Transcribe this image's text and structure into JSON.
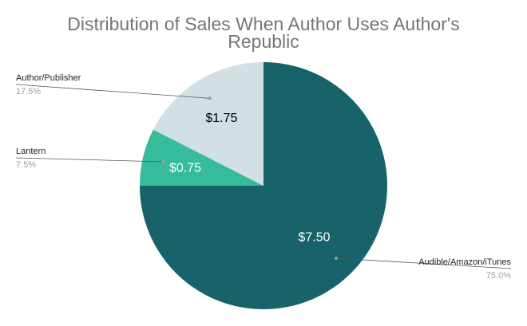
{
  "chart_data": {
    "type": "pie",
    "title_lines": [
      "Distribution of Sales When Author Uses Author's",
      "Republic"
    ],
    "start_angle_deg": 0,
    "direction": "clockwise",
    "legend": "callouts",
    "slices": [
      {
        "name": "Audible/Amazon/iTunes",
        "value": 7.5,
        "value_label": "$7.50",
        "percent_label": "75.0%",
        "color": "#18636a",
        "label_color": "#ffffff"
      },
      {
        "name": "Lantern",
        "value": 0.75,
        "value_label": "$0.75",
        "percent_label": "7.5%",
        "color": "#36bc9b",
        "label_color": "#ffffff"
      },
      {
        "name": "Author/Publisher",
        "value": 1.75,
        "value_label": "$1.75",
        "percent_label": "17.5%",
        "color": "#d2e0e4",
        "label_color": "#000000"
      }
    ]
  }
}
